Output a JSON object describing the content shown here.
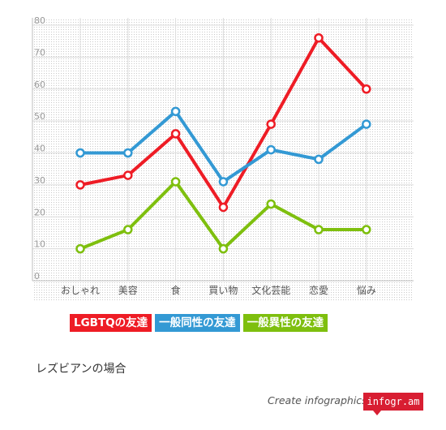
{
  "chart_data": {
    "type": "line",
    "categories": [
      "おしゃれ",
      "美容",
      "食",
      "買い物",
      "文化芸能",
      "恋愛",
      "悩み"
    ],
    "y_ticks": [
      0,
      10,
      20,
      30,
      40,
      50,
      60,
      70,
      80
    ],
    "ylim": [
      0,
      80
    ],
    "grid": true,
    "legend_position": "bottom",
    "series": [
      {
        "name": "LGBTQの友達",
        "color": "#ee1c25",
        "values": [
          30,
          33,
          46,
          23,
          49,
          76,
          60
        ]
      },
      {
        "name": "一般同性の友達",
        "color": "#3399d4",
        "values": [
          40,
          40,
          53,
          31,
          41,
          38,
          49
        ]
      },
      {
        "name": "一般異性の友達",
        "color": "#7ebf0e",
        "values": [
          10,
          16,
          31,
          10,
          24,
          16,
          16
        ]
      }
    ]
  },
  "caption": "レズビアンの場合",
  "footer": {
    "text": "Create infographics",
    "brand": "infogr.am"
  }
}
